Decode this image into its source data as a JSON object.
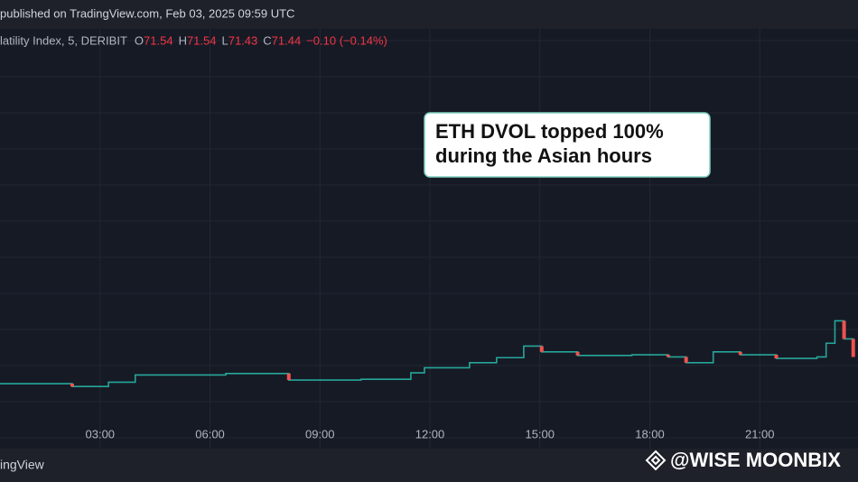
{
  "header": {
    "published": "published on TradingView.com, Feb 03, 2025 09:59 UTC"
  },
  "legend": {
    "symbol": "latility Index, 5, DERIBIT",
    "ohlc": [
      {
        "label": "O",
        "value": "71.54"
      },
      {
        "label": "H",
        "value": "71.54"
      },
      {
        "label": "L",
        "value": "71.43"
      },
      {
        "label": "C",
        "value": "71.44"
      }
    ],
    "change": "−0.10 (−0.14%)"
  },
  "chart_data": {
    "type": "line",
    "annotation": [
      "ETH DVOL topped 100%",
      "during the Asian hours"
    ],
    "x": [
      0.27,
      2.24,
      3.23,
      3.96,
      6.43,
      8.15,
      10.12,
      11.48,
      11.85,
      13.08,
      13.82,
      14.56,
      15.05,
      16.03,
      17.51,
      18.5,
      18.99,
      19.48,
      19.73,
      20.47,
      21.45,
      22.56,
      22.81,
      23.05,
      23.3,
      23.55
    ],
    "series": [
      {
        "color": "#26a69a",
        "values": [
          67.7,
          67.3,
          67.9,
          68.9,
          69.1,
          68.2,
          68.3,
          69.2,
          69.9,
          70.6,
          71.3,
          72.9,
          72.1,
          71.6,
          71.7,
          71.4,
          70.6,
          70.6,
          72.1,
          71.7,
          71.2,
          71.4,
          73.3,
          76.4,
          73.9,
          71.4
        ]
      }
    ],
    "xlim": [
      0.27,
      23.68
    ],
    "ylim": [
      58.7,
      117.1
    ],
    "xticks": [
      {
        "value": 3,
        "label": "03:00"
      },
      {
        "value": 6,
        "label": "06:00"
      },
      {
        "value": 9,
        "label": "09:00"
      },
      {
        "value": 12,
        "label": "12:00"
      },
      {
        "value": 15,
        "label": "15:00"
      },
      {
        "value": 18,
        "label": "18:00"
      },
      {
        "value": 21,
        "label": "21:00"
      }
    ],
    "down_color": "#ef5350",
    "grid": true
  },
  "footer": {
    "brand": "ingView",
    "watermark": "@WISE MOONBIX"
  }
}
